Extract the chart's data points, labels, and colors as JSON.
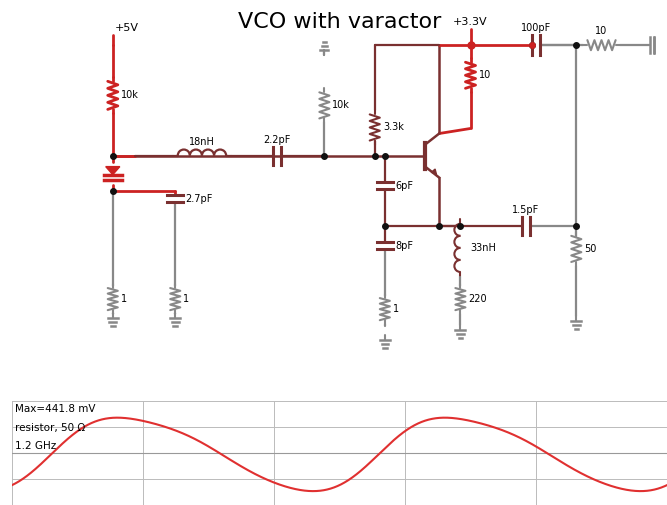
{
  "title": "VCO with varactor",
  "title_fontsize": 16,
  "bg_color": "#ffffff",
  "waveform_bg": "#d4d4d4",
  "waveform_line_color": "#e03030",
  "waveform_text": [
    "Max=441.8 mV",
    "resistor, 50 Ω",
    "1.2 GHz"
  ],
  "red": "#cc2222",
  "gray": "#888888",
  "dark": "#7a3030",
  "grid_color": "#bbbbbb",
  "left_bar_color": "#aaaaaa"
}
